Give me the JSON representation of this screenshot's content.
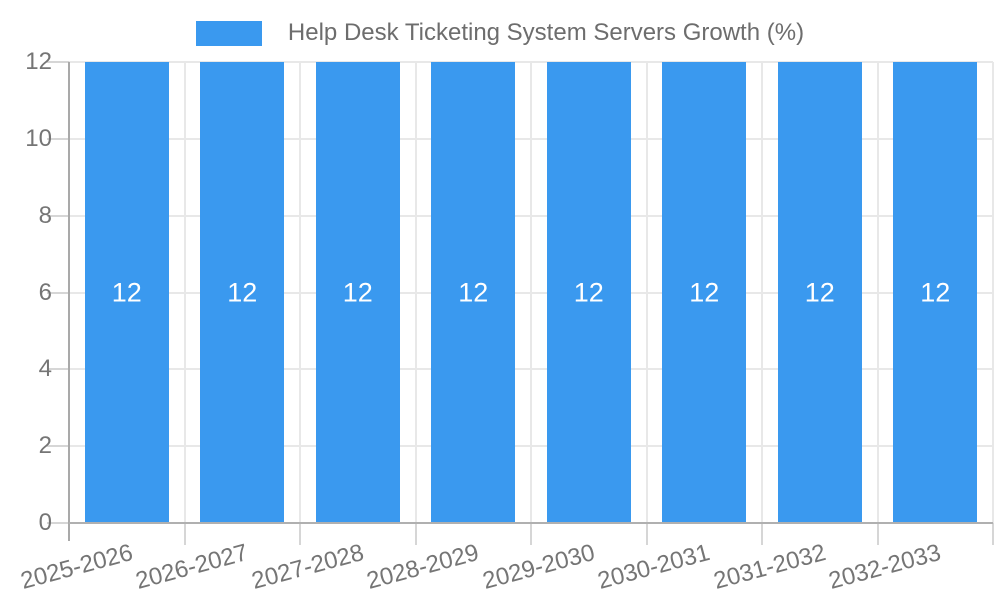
{
  "legend": {
    "title": "Help Desk Ticketing System Servers Growth (%)"
  },
  "chart_data": {
    "type": "bar",
    "title": "Help Desk Ticketing System Servers Growth (%)",
    "categories": [
      "2025-2026",
      "2026-2027",
      "2027-2028",
      "2028-2029",
      "2029-2030",
      "2030-2031",
      "2031-2032",
      "2032-2033"
    ],
    "values": [
      12,
      12,
      12,
      12,
      12,
      12,
      12,
      12
    ],
    "xlabel": "",
    "ylabel": "",
    "ylim": [
      0,
      12
    ],
    "yticks": [
      0,
      2,
      4,
      6,
      8,
      10,
      12
    ],
    "grid": true,
    "legend_position": "top-center",
    "bar_value_labels_visible": true,
    "colors": {
      "bar": "#3A99EF",
      "grid": "#e8e8e8",
      "tick": "#d6d6d6",
      "axis": "#a9a9a9",
      "axis_label": "#757575",
      "title": "#6d6d6d",
      "bar_label": "#ffffff",
      "background": "#ffffff"
    }
  }
}
